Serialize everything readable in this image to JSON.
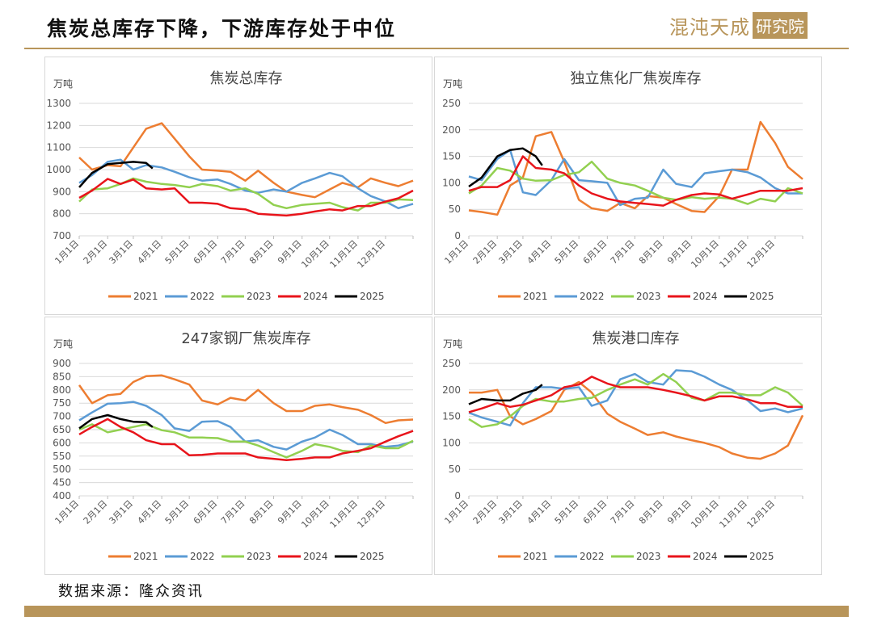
{
  "header": {
    "title": "焦炭总库存下降，下游库存处于中位",
    "logo_text": "混沌天成",
    "logo_badge": "研究院"
  },
  "footer": {
    "source": "数据来源：隆众资讯"
  },
  "colors": {
    "2021": "#ed7d31",
    "2022": "#5b9bd5",
    "2023": "#92d050",
    "2024": "#e8141b",
    "2025": "#000000",
    "brand": "#b8955a"
  },
  "chart_data": [
    {
      "type": "line",
      "title": "焦炭总库存",
      "unit": "万吨",
      "ylim": [
        700,
        1300
      ],
      "yticks": [
        700,
        800,
        900,
        1000,
        1100,
        1200,
        1300
      ],
      "grid": true,
      "legend": "bottom",
      "xticks": [
        "1月1日",
        "2月1日",
        "3月1日",
        "4月1日",
        "5月1日",
        "6月1日",
        "7月1日",
        "8月1日",
        "9月1日",
        "10月1日",
        "11月1日",
        "12月1日"
      ],
      "x": [
        "1/1",
        "1/15",
        "2/1",
        "2/15",
        "3/1",
        "3/15",
        "4/1",
        "4/15",
        "5/1",
        "5/15",
        "6/1",
        "6/15",
        "7/1",
        "7/15",
        "8/1",
        "8/15",
        "9/1",
        "9/15",
        "10/1",
        "10/15",
        "11/1",
        "11/15",
        "12/1",
        "12/15",
        "12/31"
      ],
      "series": [
        {
          "name": "2021",
          "values": [
            1055,
            1000,
            1020,
            1015,
            1100,
            1185,
            1210,
            1140,
            1060,
            1000,
            995,
            990,
            950,
            995,
            940,
            900,
            885,
            875,
            910,
            940,
            920,
            960,
            940,
            925,
            950
          ]
        },
        {
          "name": "2022",
          "values": [
            940,
            975,
            1035,
            1045,
            1000,
            1020,
            1010,
            990,
            965,
            950,
            955,
            935,
            905,
            895,
            910,
            900,
            940,
            960,
            985,
            970,
            915,
            880,
            855,
            825,
            845
          ]
        },
        {
          "name": "2023",
          "values": [
            855,
            910,
            915,
            935,
            960,
            945,
            935,
            930,
            920,
            935,
            925,
            905,
            915,
            890,
            840,
            825,
            840,
            845,
            850,
            830,
            815,
            850,
            850,
            865,
            862
          ]
        },
        {
          "name": "2024",
          "values": [
            872,
            905,
            958,
            935,
            955,
            915,
            910,
            915,
            850,
            850,
            845,
            825,
            820,
            800,
            795,
            792,
            800,
            810,
            820,
            815,
            835,
            835,
            855,
            870,
            905
          ]
        },
        {
          "name": "2025",
          "x": [
            "1/1",
            "1/15",
            "2/1",
            "2/15",
            "3/1",
            "3/15",
            "3/22"
          ],
          "values": [
            920,
            985,
            1025,
            1030,
            1035,
            1030,
            1005
          ]
        }
      ]
    },
    {
      "type": "line",
      "title": "独立焦化厂焦炭库存",
      "unit": "万吨",
      "ylim": [
        0,
        250
      ],
      "yticks": [
        0,
        50,
        100,
        150,
        200,
        250
      ],
      "grid": true,
      "legend": "bottom",
      "xticks": [
        "1月1日",
        "2月1日",
        "3月1日",
        "4月1日",
        "5月1日",
        "6月1日",
        "7月1日",
        "8月1日",
        "9月1日",
        "10月1日",
        "11月1日",
        "12月1日"
      ],
      "x": [
        "1/1",
        "1/15",
        "2/1",
        "2/15",
        "3/1",
        "3/15",
        "4/1",
        "4/15",
        "5/1",
        "5/15",
        "6/1",
        "6/15",
        "7/1",
        "7/15",
        "8/1",
        "8/15",
        "9/1",
        "9/15",
        "10/1",
        "10/15",
        "11/1",
        "11/15",
        "12/1",
        "12/15",
        "12/31"
      ],
      "series": [
        {
          "name": "2021",
          "values": [
            48,
            45,
            40,
            95,
            110,
            188,
            196,
            140,
            68,
            52,
            47,
            62,
            52,
            75,
            72,
            60,
            47,
            45,
            75,
            125,
            125,
            215,
            175,
            130,
            107
          ]
        },
        {
          "name": "2022",
          "values": [
            112,
            105,
            145,
            162,
            82,
            77,
            105,
            145,
            105,
            103,
            100,
            58,
            70,
            72,
            125,
            98,
            92,
            118,
            122,
            125,
            120,
            110,
            90,
            80,
            80
          ]
        },
        {
          "name": "2023",
          "values": [
            80,
            95,
            128,
            123,
            108,
            104,
            105,
            115,
            120,
            140,
            108,
            100,
            95,
            85,
            72,
            68,
            73,
            70,
            72,
            70,
            60,
            70,
            65,
            90,
            80
          ]
        },
        {
          "name": "2024",
          "values": [
            85,
            92,
            92,
            105,
            150,
            128,
            125,
            118,
            95,
            80,
            70,
            65,
            62,
            60,
            57,
            68,
            77,
            80,
            78,
            70,
            78,
            85,
            85,
            85,
            90
          ]
        },
        {
          "name": "2025",
          "x": [
            "1/1",
            "1/15",
            "2/1",
            "2/15",
            "3/1",
            "3/15",
            "3/22"
          ],
          "values": [
            93,
            110,
            150,
            162,
            165,
            150,
            133
          ]
        }
      ]
    },
    {
      "type": "line",
      "title": "247家钢厂焦炭库存",
      "unit": "万吨",
      "ylim": [
        400,
        900
      ],
      "yticks": [
        400,
        450,
        500,
        550,
        600,
        650,
        700,
        750,
        800,
        850,
        900
      ],
      "grid": true,
      "legend": "bottom",
      "xticks": [
        "1月1日",
        "2月1日",
        "3月1日",
        "4月1日",
        "5月1日",
        "6月1日",
        "7月1日",
        "8月1日",
        "9月1日",
        "10月1日",
        "11月1日",
        "12月1日"
      ],
      "x": [
        "1/1",
        "1/15",
        "2/1",
        "2/15",
        "3/1",
        "3/15",
        "4/1",
        "4/15",
        "5/1",
        "5/15",
        "6/1",
        "6/15",
        "7/1",
        "7/15",
        "8/1",
        "8/15",
        "9/1",
        "9/15",
        "10/1",
        "10/15",
        "11/1",
        "11/15",
        "12/1",
        "12/15",
        "12/31"
      ],
      "series": [
        {
          "name": "2021",
          "values": [
            818,
            750,
            780,
            785,
            830,
            852,
            855,
            840,
            820,
            760,
            745,
            770,
            760,
            800,
            750,
            720,
            720,
            740,
            745,
            735,
            725,
            705,
            675,
            685,
            688
          ]
        },
        {
          "name": "2022",
          "values": [
            685,
            715,
            748,
            750,
            755,
            740,
            705,
            655,
            645,
            680,
            682,
            660,
            605,
            610,
            585,
            575,
            605,
            620,
            650,
            630,
            595,
            595,
            585,
            590,
            605
          ]
        },
        {
          "name": "2023",
          "values": [
            650,
            670,
            640,
            650,
            660,
            670,
            648,
            640,
            620,
            620,
            618,
            605,
            605,
            590,
            565,
            545,
            570,
            595,
            585,
            570,
            565,
            590,
            580,
            580,
            608
          ]
        },
        {
          "name": "2024",
          "values": [
            632,
            660,
            690,
            660,
            640,
            610,
            595,
            595,
            553,
            555,
            560,
            560,
            560,
            545,
            540,
            535,
            540,
            545,
            545,
            560,
            570,
            580,
            605,
            625,
            645
          ]
        },
        {
          "name": "2025",
          "x": [
            "1/1",
            "1/15",
            "2/1",
            "2/15",
            "3/1",
            "3/15",
            "3/22"
          ],
          "values": [
            655,
            690,
            705,
            690,
            680,
            678,
            660
          ]
        }
      ]
    },
    {
      "type": "line",
      "title": "焦炭港口库存",
      "unit": "万吨",
      "ylim": [
        0,
        250
      ],
      "yticks": [
        0,
        50,
        100,
        150,
        200,
        250
      ],
      "grid": true,
      "legend": "bottom",
      "xticks": [
        "1月1日",
        "2月1日",
        "3月1日",
        "4月1日",
        "5月1日",
        "6月1日",
        "7月1日",
        "8月1日",
        "9月1日",
        "10月1日",
        "11月1日",
        "12月1日"
      ],
      "x": [
        "1/1",
        "1/15",
        "2/1",
        "2/15",
        "3/1",
        "3/15",
        "4/1",
        "4/15",
        "5/1",
        "5/15",
        "6/1",
        "6/15",
        "7/1",
        "7/15",
        "8/1",
        "8/15",
        "9/1",
        "9/15",
        "10/1",
        "10/15",
        "11/1",
        "11/15",
        "12/1",
        "12/15",
        "12/31"
      ],
      "series": [
        {
          "name": "2021",
          "values": [
            195,
            195,
            200,
            150,
            135,
            145,
            160,
            200,
            215,
            195,
            155,
            140,
            127,
            115,
            120,
            112,
            105,
            100,
            92,
            80,
            72,
            70,
            80,
            95,
            152
          ]
        },
        {
          "name": "2022",
          "values": [
            157,
            148,
            140,
            133,
            175,
            205,
            205,
            202,
            205,
            170,
            180,
            220,
            230,
            215,
            210,
            237,
            235,
            225,
            210,
            200,
            180,
            160,
            165,
            158,
            165
          ]
        },
        {
          "name": "2023",
          "values": [
            145,
            130,
            135,
            150,
            170,
            183,
            178,
            178,
            183,
            185,
            200,
            210,
            220,
            210,
            230,
            215,
            185,
            180,
            195,
            195,
            190,
            190,
            205,
            195,
            170
          ]
        },
        {
          "name": "2024",
          "values": [
            158,
            165,
            175,
            168,
            172,
            180,
            190,
            205,
            210,
            225,
            212,
            205,
            205,
            205,
            200,
            195,
            188,
            180,
            188,
            188,
            182,
            175,
            175,
            168,
            168
          ]
        },
        {
          "name": "2025",
          "x": [
            "1/1",
            "1/15",
            "2/1",
            "2/15",
            "3/1",
            "3/15",
            "3/22"
          ],
          "values": [
            173,
            183,
            180,
            180,
            193,
            200,
            210
          ]
        }
      ]
    }
  ]
}
